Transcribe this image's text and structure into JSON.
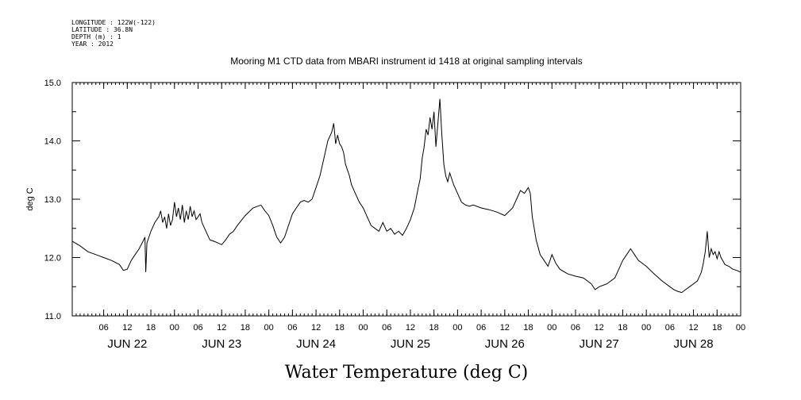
{
  "metadata": {
    "longitude": "LONGITUDE : 122W(-122)",
    "latitude": "LATITUDE : 36.8N",
    "depth": "DEPTH (m) : 1",
    "year": "YEAR : 2012"
  },
  "chart_data": {
    "type": "line",
    "title": "Mooring M1 CTD data from MBARI instrument id 1418 at original sampling intervals",
    "xlabel": "Water Temperature (deg C)",
    "ylabel": "deg C",
    "ylim": [
      11.0,
      15.0
    ],
    "yticks": [
      "11.0",
      "12.0",
      "13.0",
      "14.0",
      "15.0"
    ],
    "x_unit": "hours since start of plotted period (JUN 21 ~22:00)",
    "xlim": [
      0,
      170
    ],
    "hour_tick_labels": [
      {
        "h": 8,
        "label": "06"
      },
      {
        "h": 14,
        "label": "12"
      },
      {
        "h": 20,
        "label": "18"
      },
      {
        "h": 26,
        "label": "00"
      },
      {
        "h": 32,
        "label": "06"
      },
      {
        "h": 38,
        "label": "12"
      },
      {
        "h": 44,
        "label": "18"
      },
      {
        "h": 50,
        "label": "00"
      },
      {
        "h": 56,
        "label": "06"
      },
      {
        "h": 62,
        "label": "12"
      },
      {
        "h": 68,
        "label": "18"
      },
      {
        "h": 74,
        "label": "00"
      },
      {
        "h": 80,
        "label": "06"
      },
      {
        "h": 86,
        "label": "12"
      },
      {
        "h": 92,
        "label": "18"
      },
      {
        "h": 98,
        "label": "00"
      },
      {
        "h": 104,
        "label": "06"
      },
      {
        "h": 110,
        "label": "12"
      },
      {
        "h": 116,
        "label": "18"
      },
      {
        "h": 122,
        "label": "00"
      },
      {
        "h": 128,
        "label": "06"
      },
      {
        "h": 134,
        "label": "12"
      },
      {
        "h": 140,
        "label": "18"
      },
      {
        "h": 146,
        "label": "00"
      },
      {
        "h": 152,
        "label": "06"
      },
      {
        "h": 158,
        "label": "12"
      },
      {
        "h": 164,
        "label": "18"
      },
      {
        "h": 170,
        "label": "00"
      }
    ],
    "day_labels": [
      {
        "h": 14,
        "label": "JUN 22"
      },
      {
        "h": 38,
        "label": "JUN 23"
      },
      {
        "h": 62,
        "label": "JUN 24"
      },
      {
        "h": 86,
        "label": "JUN 25"
      },
      {
        "h": 110,
        "label": "JUN 26"
      },
      {
        "h": 134,
        "label": "JUN 27"
      },
      {
        "h": 158,
        "label": "JUN 28"
      }
    ],
    "series": [
      {
        "x": [
          0,
          2,
          4,
          6,
          8,
          10,
          12,
          13,
          14,
          15,
          16,
          17,
          18,
          18.5,
          18.7,
          19,
          20,
          21,
          22,
          22.5,
          23,
          23.5,
          24,
          24.5,
          25,
          25.5,
          26,
          26.5,
          27,
          27.5,
          28,
          28.5,
          29,
          29.5,
          30,
          30.5,
          31,
          31.5,
          32,
          32.5,
          33,
          34,
          35,
          36,
          37,
          38,
          39,
          40,
          41,
          42,
          44,
          46,
          48,
          49,
          50,
          51,
          52,
          53,
          54,
          55,
          56,
          57,
          58,
          59,
          60,
          61,
          62,
          63,
          64,
          65,
          66,
          66.5,
          67,
          67.5,
          68,
          68.5,
          69,
          69.5,
          70,
          70.5,
          71,
          72,
          73,
          74,
          75,
          76,
          77,
          78,
          79,
          80,
          81,
          82,
          83,
          84,
          85,
          86,
          87,
          88,
          88.5,
          89,
          89.5,
          90,
          90.5,
          91,
          91.5,
          92,
          92.5,
          93,
          93.5,
          94,
          94.5,
          95,
          95.5,
          96,
          97,
          98,
          99,
          100,
          101,
          102,
          104,
          106,
          108,
          110,
          112,
          113,
          114,
          115,
          116,
          116.5,
          117,
          118,
          119,
          120,
          121,
          122,
          123,
          124,
          126,
          128,
          130,
          132,
          133,
          134,
          136,
          138,
          139,
          140,
          141,
          142,
          143,
          144,
          146,
          148,
          150,
          152,
          153,
          154,
          155,
          156,
          157,
          158,
          159,
          160,
          160.5,
          161,
          161.5,
          162,
          162.5,
          163,
          163.5,
          164,
          164.5,
          165,
          166,
          167,
          168,
          169,
          170
        ],
        "y": [
          12.28,
          12.2,
          12.1,
          12.05,
          12.0,
          11.95,
          11.88,
          11.78,
          11.8,
          11.95,
          12.05,
          12.15,
          12.28,
          12.35,
          11.75,
          12.25,
          12.45,
          12.6,
          12.7,
          12.8,
          12.6,
          12.7,
          12.5,
          12.75,
          12.55,
          12.65,
          12.95,
          12.7,
          12.85,
          12.65,
          12.9,
          12.6,
          12.8,
          12.65,
          12.88,
          12.7,
          12.8,
          12.65,
          12.7,
          12.75,
          12.6,
          12.45,
          12.3,
          12.28,
          12.25,
          12.22,
          12.3,
          12.4,
          12.45,
          12.55,
          12.72,
          12.85,
          12.9,
          12.8,
          12.72,
          12.55,
          12.35,
          12.25,
          12.35,
          12.55,
          12.75,
          12.85,
          12.95,
          12.98,
          12.95,
          13.0,
          13.2,
          13.4,
          13.7,
          14.0,
          14.15,
          14.3,
          13.95,
          14.1,
          13.95,
          13.9,
          13.8,
          13.6,
          13.5,
          13.4,
          13.25,
          13.1,
          12.95,
          12.85,
          12.7,
          12.55,
          12.5,
          12.45,
          12.6,
          12.45,
          12.5,
          12.4,
          12.45,
          12.38,
          12.5,
          12.65,
          12.85,
          13.2,
          13.35,
          13.7,
          13.9,
          14.2,
          14.1,
          14.4,
          14.2,
          14.5,
          13.9,
          14.3,
          14.72,
          14.1,
          13.6,
          13.4,
          13.3,
          13.45,
          13.25,
          13.1,
          12.95,
          12.9,
          12.88,
          12.9,
          12.85,
          12.82,
          12.78,
          12.72,
          12.85,
          13.0,
          13.15,
          13.1,
          13.2,
          13.1,
          12.7,
          12.3,
          12.05,
          11.95,
          11.85,
          12.05,
          11.9,
          11.8,
          11.72,
          11.68,
          11.65,
          11.55,
          11.45,
          11.5,
          11.55,
          11.65,
          11.8,
          11.95,
          12.05,
          12.15,
          12.05,
          11.95,
          11.85,
          11.72,
          11.6,
          11.5,
          11.45,
          11.42,
          11.4,
          11.45,
          11.5,
          11.55,
          11.6,
          11.75,
          11.9,
          12.1,
          12.45,
          12.0,
          12.15,
          12.05,
          12.1,
          11.98,
          12.1,
          12.0,
          11.88,
          11.85,
          11.8,
          11.78,
          11.75
        ]
      }
    ],
    "grid": false,
    "line_color": "#000000",
    "background": "#ffffff"
  }
}
